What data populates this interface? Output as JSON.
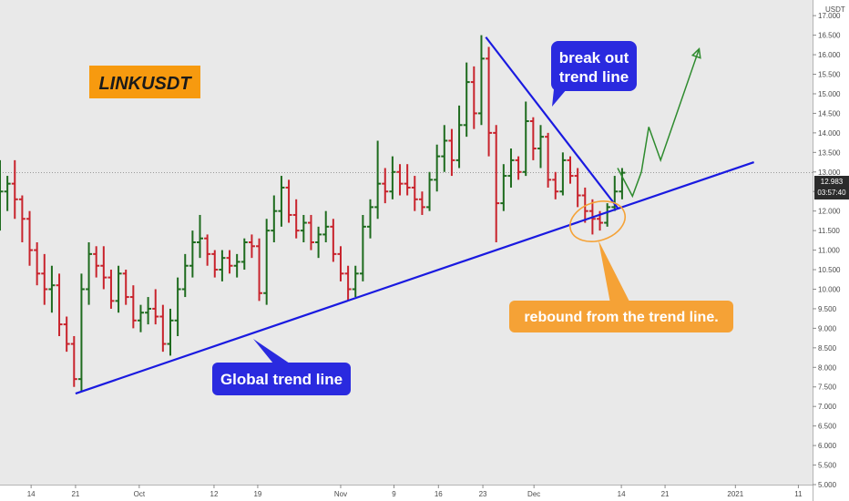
{
  "chart_data": {
    "type": "ohlc",
    "symbol_label": "LINKUSDT",
    "currency_label": "USDT",
    "current_price": 12.983,
    "current_price_label": "12.983",
    "countdown_label": "03:57:40",
    "ylim": [
      5.0,
      17.4
    ],
    "y_ticks": [
      5.0,
      5.5,
      6.0,
      6.5,
      7.0,
      7.5,
      8.0,
      8.5,
      9.0,
      9.5,
      10.0,
      10.5,
      11.0,
      11.5,
      12.0,
      12.5,
      13.0,
      13.5,
      14.0,
      14.5,
      15.0,
      15.5,
      16.0,
      16.5,
      17.0
    ],
    "y_tick_labels": [
      "5.000",
      "5.500",
      "6.000",
      "6.500",
      "7.000",
      "7.500",
      "8.000",
      "8.500",
      "9.000",
      "9.500",
      "10.000",
      "10.500",
      "11.000",
      "11.500",
      "12.000",
      "12.500",
      "13.000",
      "13.500",
      "14.000",
      "14.500",
      "15.000",
      "15.500",
      "16.000",
      "16.500",
      "17.000"
    ],
    "x_range_days": [
      0,
      109
    ],
    "x_ticks": [
      {
        "label": "14",
        "day": 4.2
      },
      {
        "label": "21",
        "day": 10.2
      },
      {
        "label": "Oct",
        "day": 18.8
      },
      {
        "label": "12",
        "day": 28.9
      },
      {
        "label": "19",
        "day": 34.8
      },
      {
        "label": "Nov",
        "day": 46.0
      },
      {
        "label": "9",
        "day": 53.2
      },
      {
        "label": "16",
        "day": 59.2
      },
      {
        "label": "23",
        "day": 65.2
      },
      {
        "label": "Dec",
        "day": 72.1
      },
      {
        "label": "14",
        "day": 83.9
      },
      {
        "label": "21",
        "day": 89.8
      },
      {
        "label": "2021",
        "day": 99.3
      },
      {
        "label": "11",
        "day": 107.8
      }
    ],
    "candles": [
      [
        12.3,
        13.3,
        11.5,
        12.5
      ],
      [
        12.5,
        12.9,
        12.0,
        12.7
      ],
      [
        12.7,
        13.3,
        11.8,
        12.3
      ],
      [
        12.3,
        12.4,
        11.2,
        11.8
      ],
      [
        11.8,
        12.0,
        10.6,
        11.0
      ],
      [
        11.0,
        11.2,
        10.1,
        10.4
      ],
      [
        10.4,
        10.9,
        9.6,
        10.0
      ],
      [
        10.0,
        10.6,
        9.4,
        10.1
      ],
      [
        10.1,
        10.4,
        8.8,
        9.1
      ],
      [
        9.1,
        9.3,
        8.4,
        8.6
      ],
      [
        8.6,
        8.8,
        7.5,
        7.7
      ],
      [
        7.7,
        10.4,
        7.4,
        10.0
      ],
      [
        10.0,
        11.2,
        9.6,
        10.9
      ],
      [
        10.9,
        11.1,
        10.3,
        10.6
      ],
      [
        10.6,
        11.1,
        10.0,
        10.3
      ],
      [
        10.3,
        10.5,
        9.5,
        9.7
      ],
      [
        9.7,
        10.6,
        9.4,
        10.4
      ],
      [
        10.4,
        10.5,
        9.6,
        9.8
      ],
      [
        9.8,
        10.1,
        9.0,
        9.2
      ],
      [
        9.2,
        9.6,
        8.9,
        9.4
      ],
      [
        9.4,
        9.8,
        9.1,
        9.5
      ],
      [
        9.5,
        10.0,
        9.1,
        9.3
      ],
      [
        9.3,
        9.6,
        8.4,
        8.6
      ],
      [
        8.6,
        9.5,
        8.3,
        9.2
      ],
      [
        9.2,
        10.3,
        8.8,
        10.0
      ],
      [
        10.0,
        10.9,
        9.8,
        10.6
      ],
      [
        10.6,
        11.5,
        10.3,
        11.2
      ],
      [
        11.2,
        11.9,
        10.8,
        11.3
      ],
      [
        11.3,
        11.4,
        10.6,
        10.9
      ],
      [
        10.9,
        11.0,
        10.3,
        10.5
      ],
      [
        10.5,
        11.0,
        10.2,
        10.8
      ],
      [
        10.8,
        11.0,
        10.4,
        10.6
      ],
      [
        10.6,
        10.9,
        10.3,
        10.7
      ],
      [
        10.7,
        11.3,
        10.5,
        11.2
      ],
      [
        11.2,
        11.4,
        10.8,
        11.1
      ],
      [
        11.1,
        11.3,
        9.7,
        9.9
      ],
      [
        9.9,
        11.8,
        9.6,
        11.5
      ],
      [
        11.5,
        12.4,
        11.2,
        12.0
      ],
      [
        12.0,
        12.9,
        11.6,
        12.6
      ],
      [
        12.6,
        12.8,
        11.7,
        11.9
      ],
      [
        11.9,
        12.3,
        11.3,
        11.5
      ],
      [
        11.5,
        11.9,
        11.2,
        11.7
      ],
      [
        11.7,
        11.9,
        11.0,
        11.2
      ],
      [
        11.2,
        11.6,
        10.8,
        11.4
      ],
      [
        11.4,
        12.0,
        11.2,
        11.6
      ],
      [
        11.6,
        11.8,
        10.7,
        10.9
      ],
      [
        10.9,
        11.1,
        10.2,
        10.4
      ],
      [
        10.4,
        10.6,
        9.7,
        10.0
      ],
      [
        10.0,
        10.6,
        9.8,
        10.4
      ],
      [
        10.4,
        11.9,
        10.2,
        11.6
      ],
      [
        11.6,
        12.3,
        11.3,
        12.1
      ],
      [
        12.1,
        13.8,
        11.8,
        12.7
      ],
      [
        12.7,
        13.1,
        12.2,
        12.5
      ],
      [
        12.5,
        13.4,
        12.3,
        13.0
      ],
      [
        13.0,
        13.2,
        12.4,
        12.7
      ],
      [
        12.7,
        13.2,
        12.4,
        12.6
      ],
      [
        12.6,
        12.9,
        12.0,
        12.3
      ],
      [
        12.3,
        12.5,
        11.9,
        12.1
      ],
      [
        12.1,
        13.0,
        12.0,
        12.8
      ],
      [
        12.8,
        13.7,
        12.5,
        13.4
      ],
      [
        13.4,
        14.2,
        13.0,
        13.8
      ],
      [
        13.8,
        14.1,
        12.9,
        13.3
      ],
      [
        13.3,
        14.7,
        13.1,
        14.2
      ],
      [
        14.2,
        15.8,
        13.9,
        15.3
      ],
      [
        15.3,
        15.7,
        14.1,
        14.5
      ],
      [
        14.5,
        16.5,
        14.2,
        15.9
      ],
      [
        15.9,
        16.2,
        13.4,
        14.0
      ],
      [
        14.0,
        14.2,
        11.2,
        12.2
      ],
      [
        12.2,
        13.2,
        12.0,
        12.9
      ],
      [
        12.9,
        13.6,
        12.6,
        13.3
      ],
      [
        13.3,
        13.4,
        12.8,
        13.0
      ],
      [
        13.0,
        14.8,
        12.9,
        14.3
      ],
      [
        14.3,
        14.4,
        13.3,
        13.6
      ],
      [
        13.6,
        14.2,
        13.1,
        13.9
      ],
      [
        13.9,
        14.0,
        12.6,
        12.8
      ],
      [
        12.8,
        13.0,
        12.3,
        12.5
      ],
      [
        12.5,
        13.5,
        12.4,
        13.3
      ],
      [
        13.3,
        13.4,
        12.7,
        12.9
      ],
      [
        12.9,
        13.1,
        12.1,
        12.4
      ],
      [
        12.4,
        12.6,
        11.7,
        12.0
      ],
      [
        12.0,
        12.3,
        11.4,
        11.8
      ],
      [
        11.8,
        12.0,
        11.5,
        11.7
      ],
      [
        11.7,
        12.2,
        11.6,
        12.1
      ],
      [
        12.1,
        12.9,
        12.0,
        12.5
      ],
      [
        12.5,
        13.1,
        12.3,
        12.98
      ]
    ],
    "annotations": {
      "global_trend_line": {
        "label": "Global trend line",
        "start": {
          "day": 10.2,
          "price": 7.33
        },
        "end": {
          "day": 101.8,
          "price": 13.25
        }
      },
      "breakout_trend_line": {
        "label_line1": "break out",
        "label_line2": "trend line",
        "start": {
          "day": 65.6,
          "price": 16.45
        },
        "end": {
          "day": 83.4,
          "price": 12.08
        }
      },
      "rebound": {
        "label": "rebound from the trend line."
      },
      "projection_path": [
        {
          "day": 83.4,
          "price": 13.1
        },
        {
          "day": 85.4,
          "price": 12.38
        },
        {
          "day": 86.6,
          "price": 13.0
        },
        {
          "day": 87.6,
          "price": 14.15
        },
        {
          "day": 89.2,
          "price": 13.3
        },
        {
          "day": 94.4,
          "price": 16.15
        }
      ]
    },
    "colors": {
      "up": "#1e6b1e",
      "down": "#c8232c",
      "trend_line": "#1a1ae0",
      "callout_blue": "#2a2adf",
      "callout_orange": "#f5a236",
      "title_bg": "#f79a0f",
      "projection": "#2e8b2e",
      "rebound_ellipse": "#f5a236",
      "plot_bg": "#e9e9e9",
      "price_tag": "#2b2b2b"
    }
  }
}
